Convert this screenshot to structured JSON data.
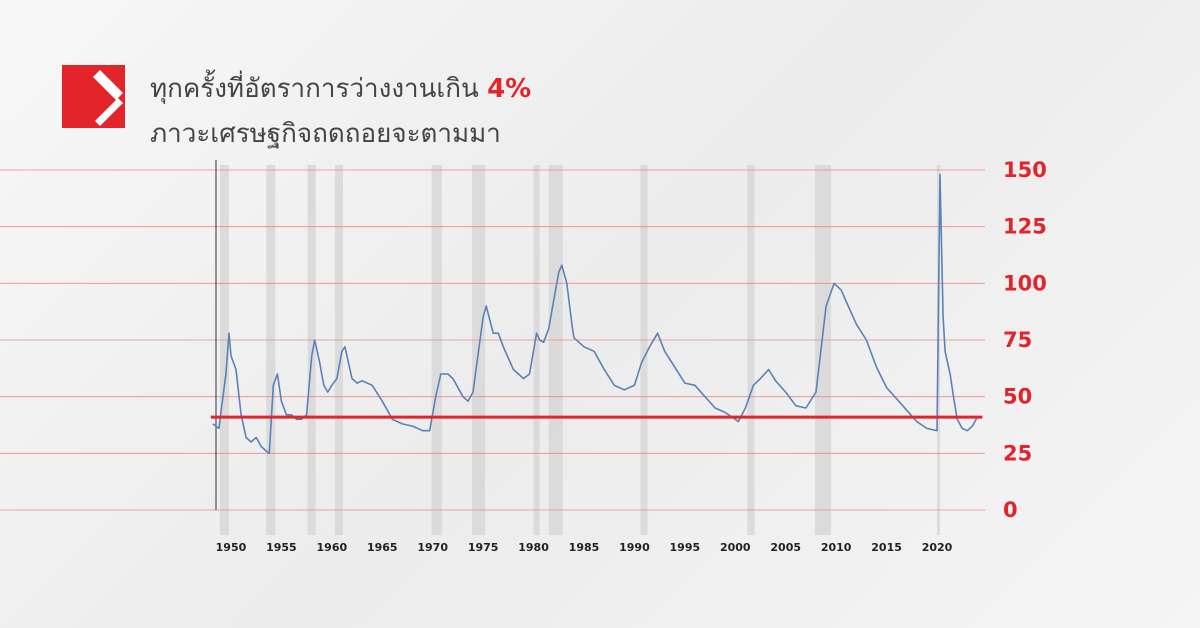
{
  "chart_data": {
    "type": "line",
    "title_line1": "ทุกครั้งที่อัตราการว่างงานเกิน",
    "title_highlight": "4%",
    "title_line2": "ภาวะเศรษฐกิจถดถอยจะตามมา",
    "x": [
      1948.2,
      1948.8,
      1949.5,
      1949.8,
      1950.0,
      1950.5,
      1951,
      1951.5,
      1952,
      1952.5,
      1953,
      1953.5,
      1953.8,
      1954.2,
      1954.6,
      1955,
      1955.5,
      1956,
      1956.5,
      1957,
      1957.5,
      1958,
      1958.3,
      1958.8,
      1959.2,
      1959.6,
      1960,
      1960.5,
      1961,
      1961.3,
      1962,
      1962.5,
      1963,
      1964,
      1965,
      1966,
      1967,
      1968,
      1969,
      1969.7,
      1970.3,
      1970.8,
      1971.5,
      1972,
      1973,
      1973.5,
      1974,
      1975,
      1975.3,
      1976,
      1976.5,
      1977,
      1978,
      1979,
      1979.6,
      1980.3,
      1980.6,
      1981,
      1981.5,
      1982.5,
      1982.8,
      1983.3,
      1983.8,
      1984,
      1985,
      1986,
      1987,
      1988,
      1989,
      1990,
      1990.7,
      1991.5,
      1992.3,
      1993,
      1994,
      1995,
      1996,
      1997,
      1998,
      1999,
      2000,
      2000.3,
      2001,
      2001.8,
      2002.5,
      2003.3,
      2004,
      2005,
      2006,
      2007,
      2008,
      2009,
      2009.8,
      2010.5,
      2011,
      2012,
      2013,
      2014,
      2015,
      2016,
      2017,
      2018,
      2019,
      2020.0,
      2020.3,
      2020.6,
      2020.8,
      2021.3,
      2021.7,
      2022,
      2022.5,
      2023,
      2023.5,
      2024
    ],
    "series": [
      {
        "color": "#5b82b8",
        "values": [
          38,
          36,
          60,
          78,
          68,
          62,
          42,
          32,
          30,
          32,
          28,
          26,
          25,
          55,
          60,
          48,
          42,
          42,
          40,
          40,
          42,
          68,
          75,
          65,
          55,
          52,
          55,
          58,
          70,
          72,
          58,
          56,
          57,
          55,
          48,
          40,
          38,
          37,
          35,
          35,
          50,
          60,
          60,
          58,
          50,
          48,
          52,
          85,
          90,
          78,
          78,
          72,
          62,
          58,
          60,
          78,
          75,
          74,
          80,
          105,
          108,
          100,
          82,
          76,
          72,
          70,
          62,
          55,
          53,
          55,
          65,
          72,
          78,
          70,
          63,
          56,
          55,
          50,
          45,
          43,
          40,
          39,
          45,
          55,
          58,
          62,
          57,
          52,
          46,
          45,
          52,
          90,
          100,
          97,
          92,
          82,
          75,
          63,
          54,
          49,
          44,
          39,
          36,
          35,
          148,
          85,
          70,
          60,
          48,
          40,
          36,
          35,
          37,
          41
        ]
      }
    ],
    "threshold": 41,
    "threshold_color": "#e3242b",
    "recessions": [
      [
        1948.9,
        1949.8
      ],
      [
        1953.5,
        1954.4
      ],
      [
        1957.6,
        1958.4
      ],
      [
        1960.3,
        1961.1
      ],
      [
        1969.9,
        1970.9
      ],
      [
        1973.9,
        1975.2
      ],
      [
        1980.0,
        1980.6
      ],
      [
        1981.5,
        1982.9
      ],
      [
        1990.6,
        1991.3
      ],
      [
        2001.2,
        2001.9
      ],
      [
        2007.9,
        2009.5
      ],
      [
        2020.0,
        2020.3
      ]
    ],
    "xlim": [
      1948,
      2024.5
    ],
    "xticks": [
      1950,
      1955,
      1960,
      1965,
      1970,
      1975,
      1980,
      1985,
      1990,
      1995,
      2000,
      2005,
      2010,
      2015,
      2020
    ],
    "ylim": [
      0,
      150
    ],
    "yticks": [
      0,
      25,
      50,
      75,
      100,
      125,
      150
    ],
    "grid": true
  }
}
